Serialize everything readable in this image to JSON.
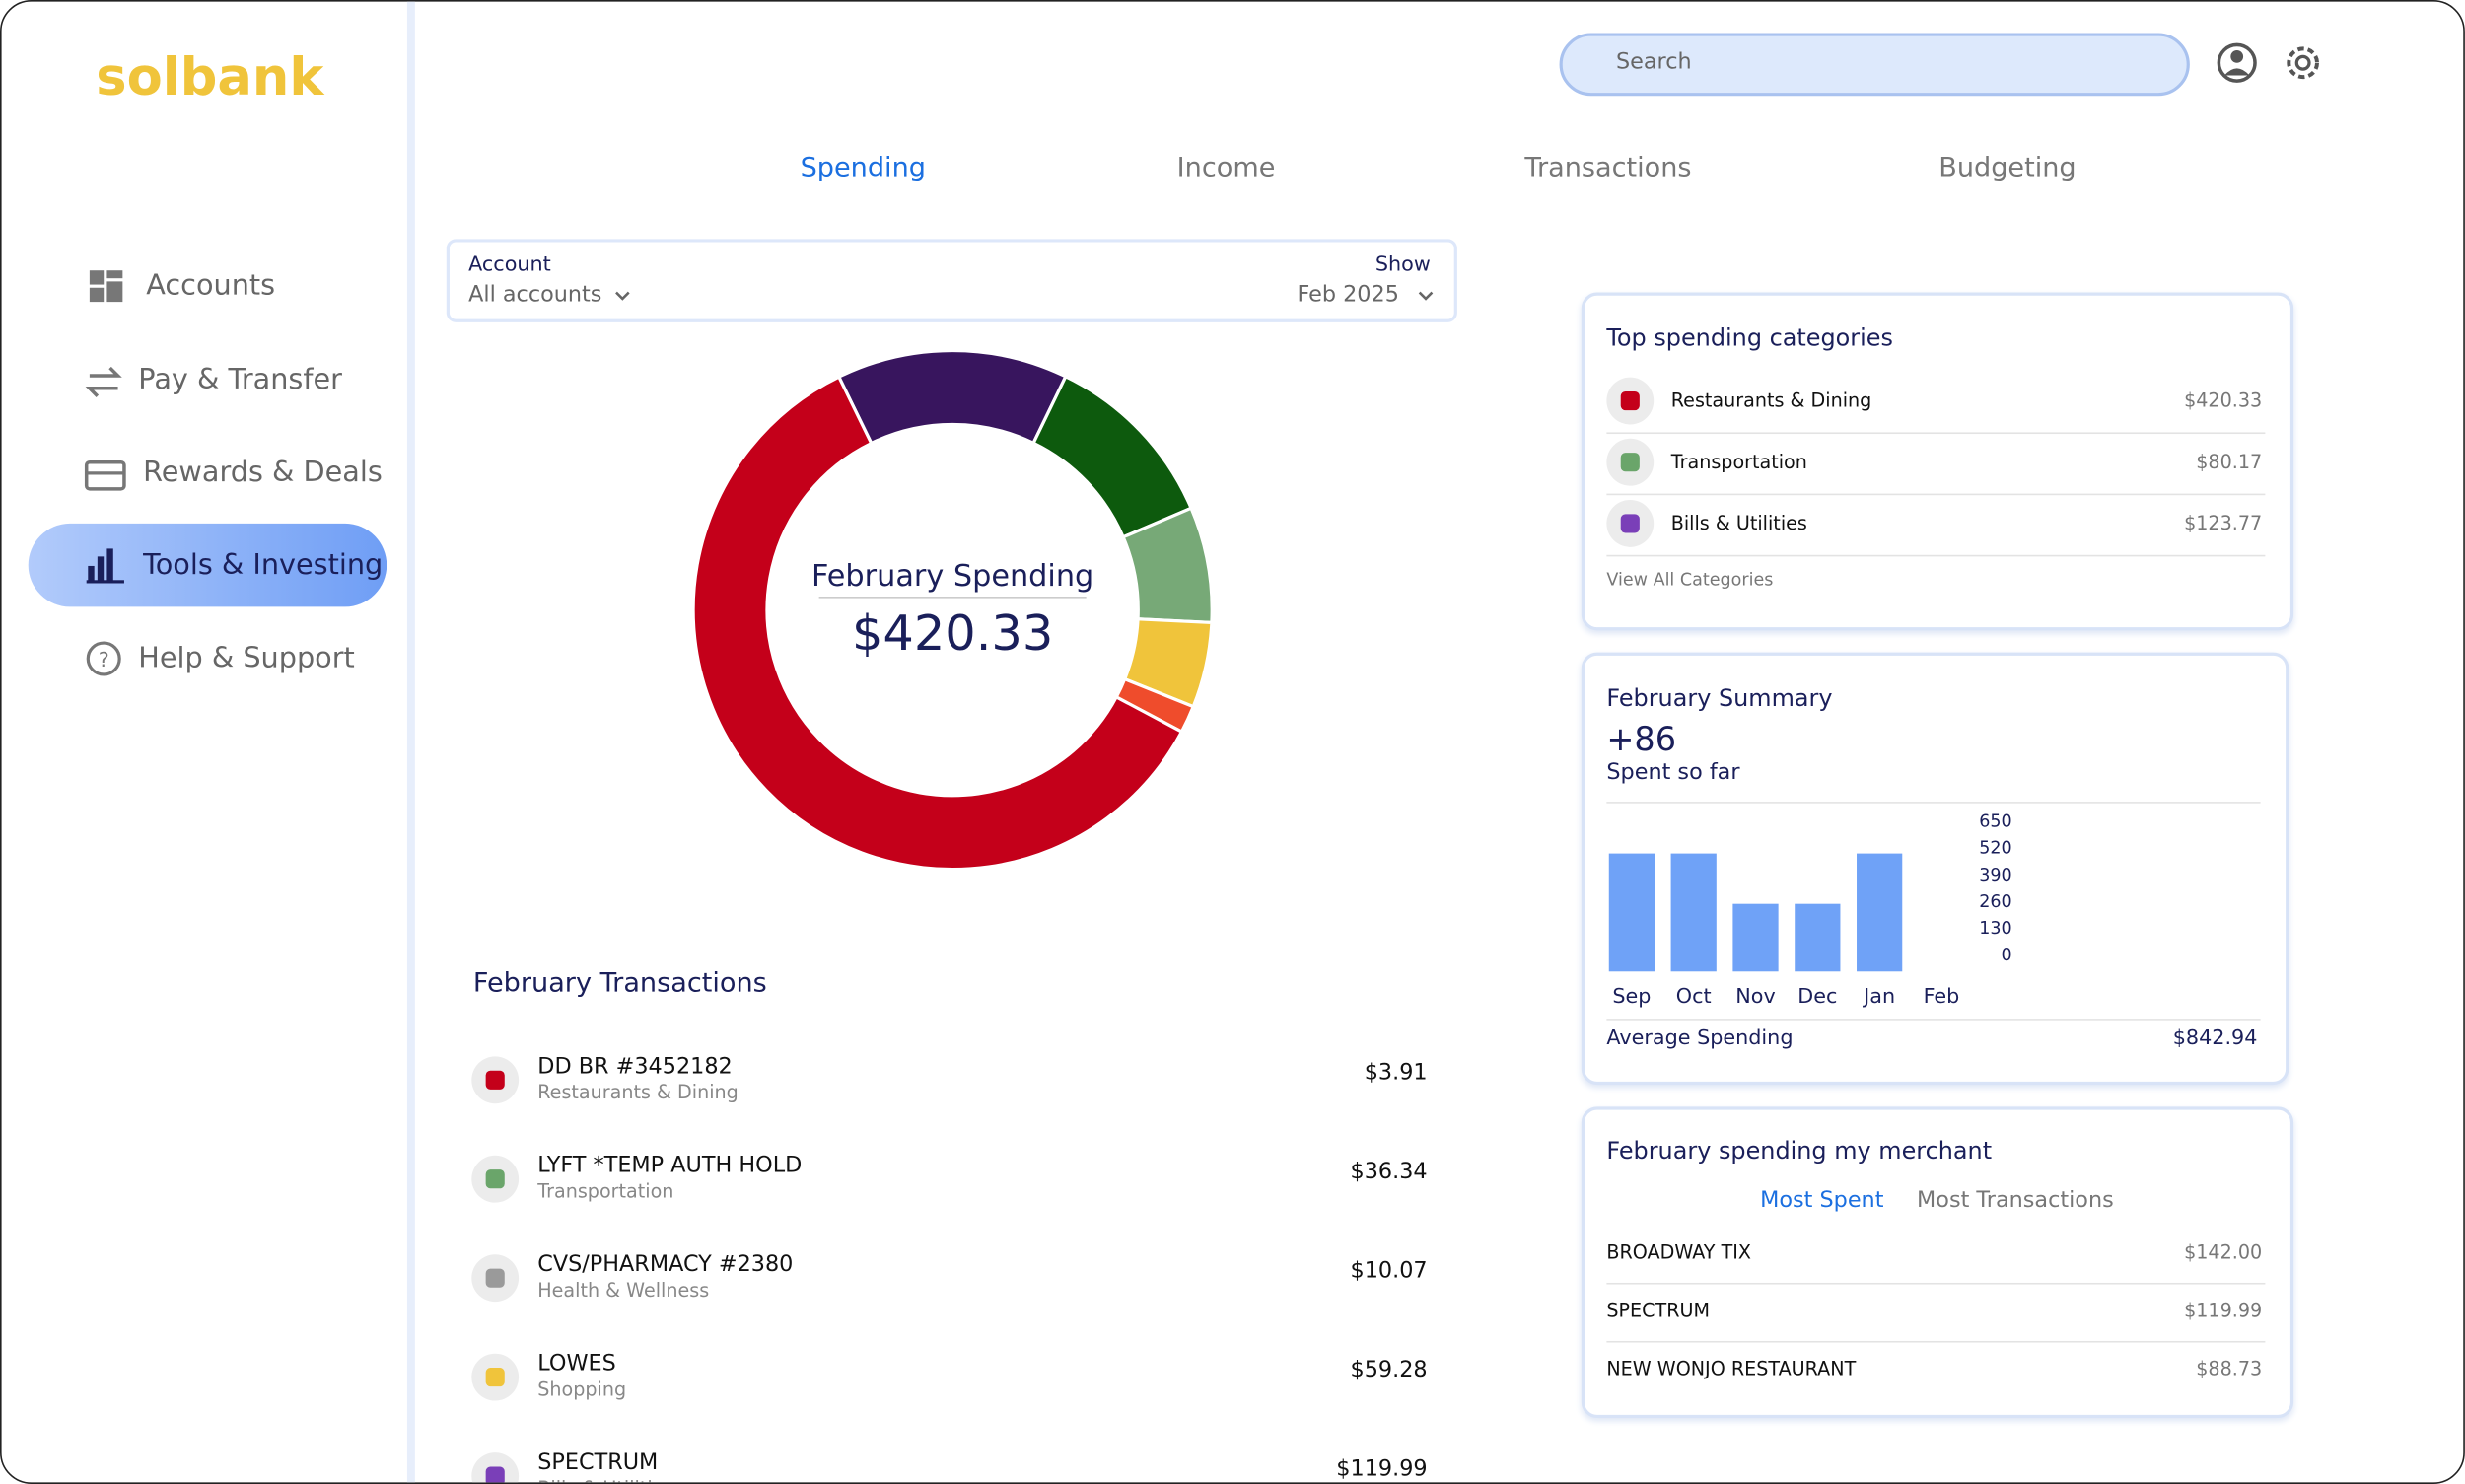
{
  "brand": "solbank",
  "search": {
    "placeholder": "Search"
  },
  "nav": [
    "Accounts",
    "Pay & Transfer",
    "Rewards & Deals",
    "Tools & Investing",
    "Help & Support"
  ],
  "tabs": [
    "Spending",
    "Income",
    "Transactions",
    "Budgeting"
  ],
  "filter": {
    "account_label": "Account",
    "account_value": "All accounts",
    "show_label": "Show",
    "show_value": "Feb 2025"
  },
  "chart_data": [
    {
      "type": "donut",
      "title": "February Spending",
      "subtitle": "$420.33",
      "values": [
        14.4,
        11.4,
        7.2,
        5.3,
        1.7,
        60
      ],
      "colors": [
        "#38155e",
        "#0d5a0d",
        "#77a977",
        "#f0c43b",
        "#ef4c2c",
        "#c4001a"
      ]
    },
    {
      "type": "bar",
      "title": "February Summary",
      "subtitle": "+86",
      "caption": "Spent so far",
      "categories": [
        "Sep",
        "Oct",
        "Nov",
        "Dec",
        "Jan",
        "Feb"
      ],
      "values": [
        574,
        574,
        329,
        329,
        574,
        null
      ],
      "color": "#6fa2f7",
      "ylim": [
        0,
        650
      ],
      "yticks": [
        650,
        520,
        390,
        260,
        130,
        0
      ],
      "grid": false,
      "footer_label": "Average Spending",
      "footer_value": "$842.94"
    }
  ],
  "transactions": {
    "title": "February Transactions",
    "items": [
      {
        "name": "DD BR #3452182",
        "category": "Restaurants & Dining",
        "amount": "$3.91"
      },
      {
        "name": "LYFT *TEMP AUTH HOLD",
        "category": "Transportation",
        "amount": "$36.34"
      },
      {
        "name": "CVS/PHARMACY #2380",
        "category": "Health & Wellness",
        "amount": "$10.07"
      },
      {
        "name": "LOWES",
        "category": "Shopping",
        "amount": "$59.28"
      },
      {
        "name": "SPECTRUM",
        "category": "Bills & Utilities",
        "amount": "$119.99"
      }
    ]
  },
  "top_categories": {
    "title": "Top spending categories",
    "items": [
      {
        "name": "Restaurants & Dining",
        "amount": "$420.33"
      },
      {
        "name": "Transportation",
        "amount": "$80.17"
      },
      {
        "name": "Bills & Utilities",
        "amount": "$123.77"
      }
    ],
    "link": "View All Categories"
  },
  "merchants": {
    "title": "February spending my merchant",
    "tabs": [
      "Most Spent",
      "Most Transactions"
    ],
    "items": [
      {
        "name": "BROADWAY TIX",
        "amount": "$142.00"
      },
      {
        "name": "SPECTRUM",
        "amount": "$119.99"
      },
      {
        "name": "NEW WONJO RESTAURANT",
        "amount": "$88.73"
      }
    ]
  }
}
